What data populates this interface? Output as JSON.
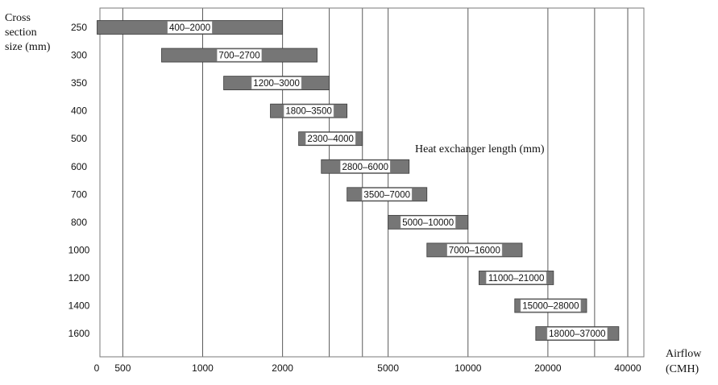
{
  "chart_data": {
    "type": "bar",
    "orientation": "horizontal-range",
    "ylabel_lines": [
      "Cross",
      "section",
      "size (mm)"
    ],
    "xlabel_lines": [
      "Airflow",
      "(CMH)"
    ],
    "annotation": "Heat exchanger length (mm)",
    "x_scale": "log",
    "x_origin_label": "0",
    "x_ticks": [
      {
        "value": 500,
        "label": "500"
      },
      {
        "value": 1000,
        "label": "1000"
      },
      {
        "value": 2000,
        "label": "2000"
      },
      {
        "value": 5000,
        "label": "5000"
      },
      {
        "value": 10000,
        "label": "10000"
      },
      {
        "value": 20000,
        "label": "20000"
      },
      {
        "value": 40000,
        "label": "40000"
      }
    ],
    "x_gridlines": [
      500,
      1000,
      2000,
      3000,
      4000,
      5000,
      10000,
      20000,
      30000,
      40000
    ],
    "xlim": [
      410,
      46000
    ],
    "grid": true,
    "categories": [
      "250",
      "300",
      "350",
      "400",
      "500",
      "600",
      "700",
      "800",
      "1000",
      "1200",
      "1400",
      "1600"
    ],
    "ranges": [
      {
        "label": "400–2000",
        "start": 400,
        "end": 2000
      },
      {
        "label": "700–2700",
        "start": 700,
        "end": 2700
      },
      {
        "label": "1200–3000",
        "start": 1200,
        "end": 3000
      },
      {
        "label": "1800–3500",
        "start": 1800,
        "end": 3500
      },
      {
        "label": "2300–4000",
        "start": 2300,
        "end": 4000
      },
      {
        "label": "2800–6000",
        "start": 2800,
        "end": 6000
      },
      {
        "label": "3500–7000",
        "start": 3500,
        "end": 7000
      },
      {
        "label": "5000–10000",
        "start": 5000,
        "end": 10000
      },
      {
        "label": "7000–16000",
        "start": 7000,
        "end": 16000
      },
      {
        "label": "11000–21000",
        "start": 11000,
        "end": 21000
      },
      {
        "label": "15000–28000",
        "start": 15000,
        "end": 28000
      },
      {
        "label": "18000–37000",
        "start": 18000,
        "end": 37000
      }
    ],
    "colors": {
      "bar": "#767676",
      "bar_border": "#3a3a3a",
      "label_box": "#ffffff",
      "grid": "#5a5a5a",
      "frame": "#7a7a7a",
      "text": "#111111"
    }
  }
}
